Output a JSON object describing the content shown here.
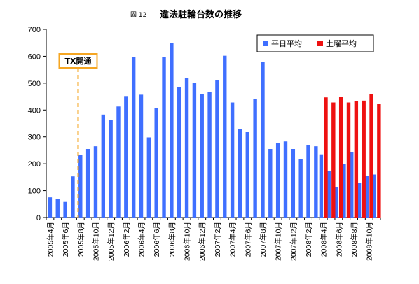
{
  "chart_data": {
    "type": "bar",
    "figure_label": "図 12",
    "title": "違法駐輪台数の推移",
    "ylim": [
      0,
      700
    ],
    "yticks": [
      0,
      100,
      200,
      300,
      400,
      500,
      600,
      700
    ],
    "grid": false,
    "legend_position": "top-right",
    "x": [
      "2005年4月",
      "2005年5月",
      "2005年6月",
      "2005年7月",
      "2005年8月",
      "2005年9月",
      "2005年10月",
      "2005年11月",
      "2005年12月",
      "2006年1月",
      "2006年2月",
      "2006年3月",
      "2006年4月",
      "2006年5月",
      "2006年6月",
      "2006年7月",
      "2006年8月",
      "2006年9月",
      "2006年10月",
      "2006年11月",
      "2006年12月",
      "2007年1月",
      "2007年2月",
      "2007年3月",
      "2007年4月",
      "2007年5月",
      "2007年6月",
      "2007年7月",
      "2007年8月",
      "2007年9月",
      "2007年10月",
      "2007年11月",
      "2007年12月",
      "2008年1月",
      "2008年2月",
      "2008年3月",
      "2008年4月",
      "2008年5月",
      "2008年6月",
      "2008年7月",
      "2008年8月",
      "2008年9月",
      "2008年10月",
      "2008年11月"
    ],
    "xtick_labels": [
      {
        "index": 0,
        "label": "2005年4月"
      },
      {
        "index": 2,
        "label": "2005年6月"
      },
      {
        "index": 4,
        "label": "2005年8月"
      },
      {
        "index": 6,
        "label": "2005年10月"
      },
      {
        "index": 8,
        "label": "2005年12月"
      },
      {
        "index": 10,
        "label": "2006年2月"
      },
      {
        "index": 12,
        "label": "2006年4月"
      },
      {
        "index": 14,
        "label": "2006年6月"
      },
      {
        "index": 16,
        "label": "2006年8月"
      },
      {
        "index": 18,
        "label": "2006年10月"
      },
      {
        "index": 20,
        "label": "2006年12月"
      },
      {
        "index": 22,
        "label": "2007年2月"
      },
      {
        "index": 24,
        "label": "2007年4月"
      },
      {
        "index": 26,
        "label": "2007年6月"
      },
      {
        "index": 28,
        "label": "2007年8月"
      },
      {
        "index": 30,
        "label": "2007年10月"
      },
      {
        "index": 32,
        "label": "2007年12月"
      },
      {
        "index": 34,
        "label": "2008年2月"
      },
      {
        "index": 36,
        "label": "2008年4月"
      },
      {
        "index": 38,
        "label": "2008年6月"
      },
      {
        "index": 40,
        "label": "2008年8月"
      },
      {
        "index": 42,
        "label": "2008年10月"
      }
    ],
    "series": [
      {
        "name": "平日平均",
        "color": "#3f6fff",
        "values": [
          75,
          68,
          58,
          153,
          232,
          255,
          265,
          383,
          363,
          413,
          452,
          597,
          457,
          298,
          408,
          597,
          650,
          485,
          520,
          502,
          460,
          467,
          510,
          602,
          428,
          328,
          320,
          440,
          578,
          255,
          277,
          283,
          255,
          218,
          268,
          265,
          235,
          172,
          113,
          200,
          242,
          130,
          155,
          160
        ]
      },
      {
        "name": "土曜平均",
        "color": "#ee1111",
        "values": [
          null,
          null,
          null,
          null,
          null,
          null,
          null,
          null,
          null,
          null,
          null,
          null,
          null,
          null,
          null,
          null,
          null,
          null,
          null,
          null,
          null,
          null,
          null,
          null,
          null,
          null,
          null,
          null,
          null,
          null,
          null,
          null,
          null,
          null,
          null,
          null,
          447,
          428,
          448,
          428,
          433,
          435,
          458,
          423
        ]
      }
    ],
    "annotation": {
      "label": "TX開通",
      "index": 4,
      "color": "#f5a623"
    }
  }
}
